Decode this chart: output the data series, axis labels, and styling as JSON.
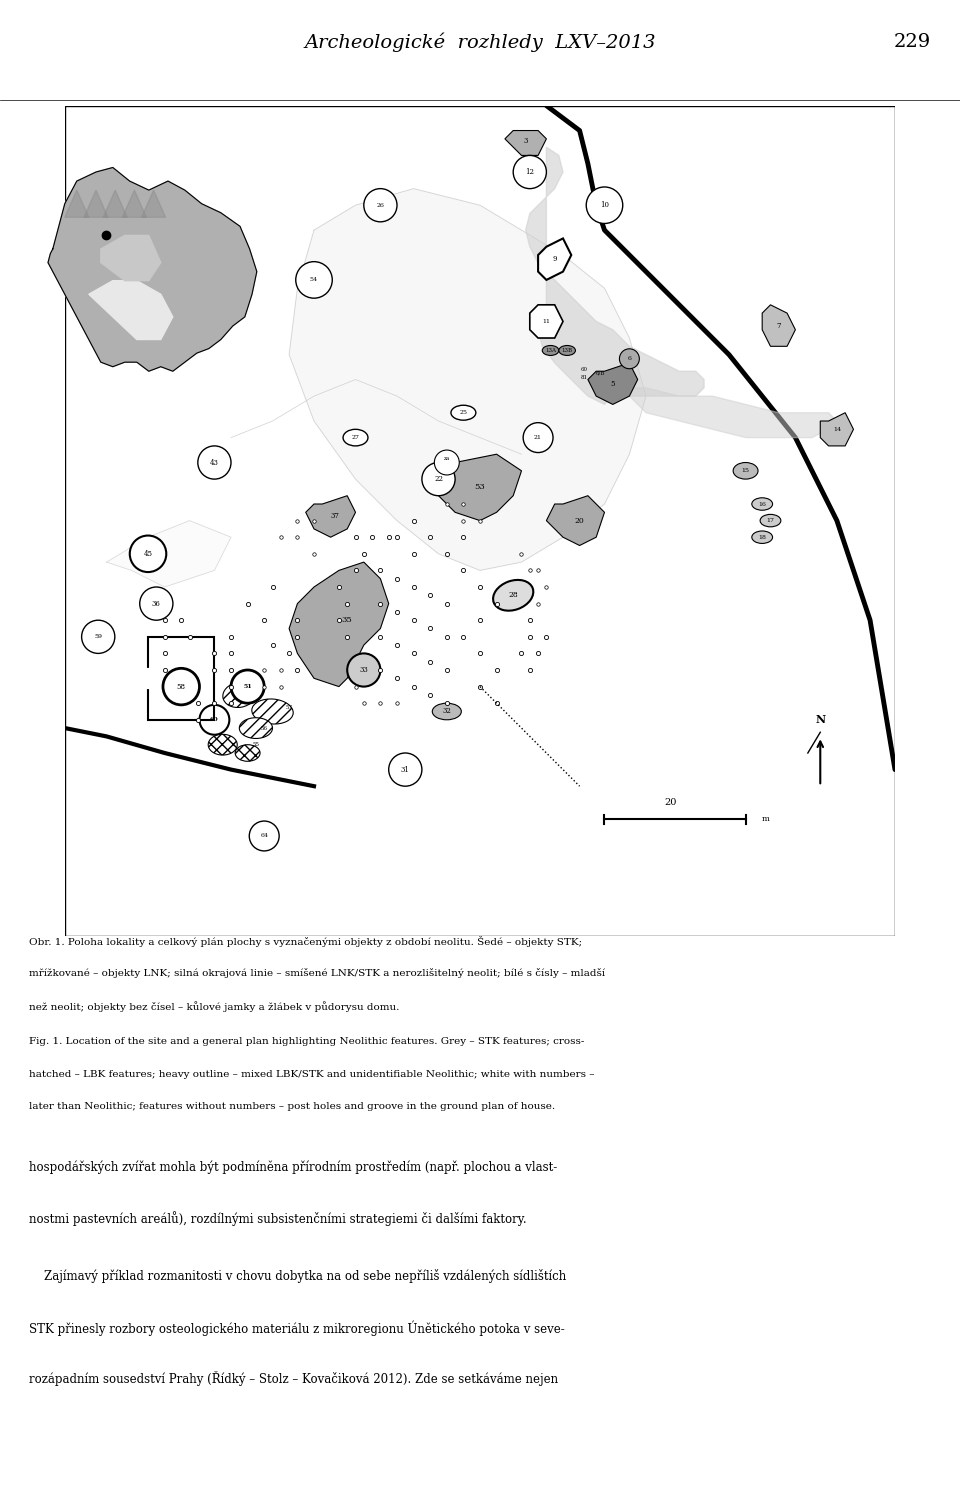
{
  "header_text": "Archeologické  rozhledy  LXV–2013",
  "header_page": "229",
  "header_fontsize": 14,
  "caption_cz": "Obr. 1. Poloha lokality a celkový plán plochy s vyznačenými objekty z období neolitu. Šedé – objekty STK; mřížkované – objekty LNK; silná okrajová linie – smíšené LNK/STK a nerozlišitelný neolit; bílé s čísly – mladší než neolit; objekty bez čísel – kůlové jamky a žlábek v půdorysu domu.",
  "caption_en": "Fig. 1. Location of the site and a general plan highlighting Neolithic features. Grey – STK features; cross-hatched – LBK features; heavy outline – mixed LBK/STK and unidentifiable Neolithic; white with numbers – later than Neolithic; features without numbers – post holes and groove in the ground plan of house.",
  "body_text": [
    "hospodářských zvířat mohla být podmíněna přírodním prostředím (např. plochou a vlast-",
    "nostmi pastevních areálů), rozdílnými subsistenčními strategiemi či dalšími faktory.",
    "    Zajímavý příklad rozmanitosti v chovu dobytka na od sebe nepříliš vzdálených sídlištích",
    "STK přinesly rozbory osteologického materiálu z mikroregionu Únětického potoka v seve-",
    "rozápadním sousedství Prahy (Řídký – Stolz – Kovačiková 2012). Zde se setkáváme nejen"
  ],
  "background_color": "#ffffff",
  "map_background": "#ffffff",
  "border_color": "#000000"
}
